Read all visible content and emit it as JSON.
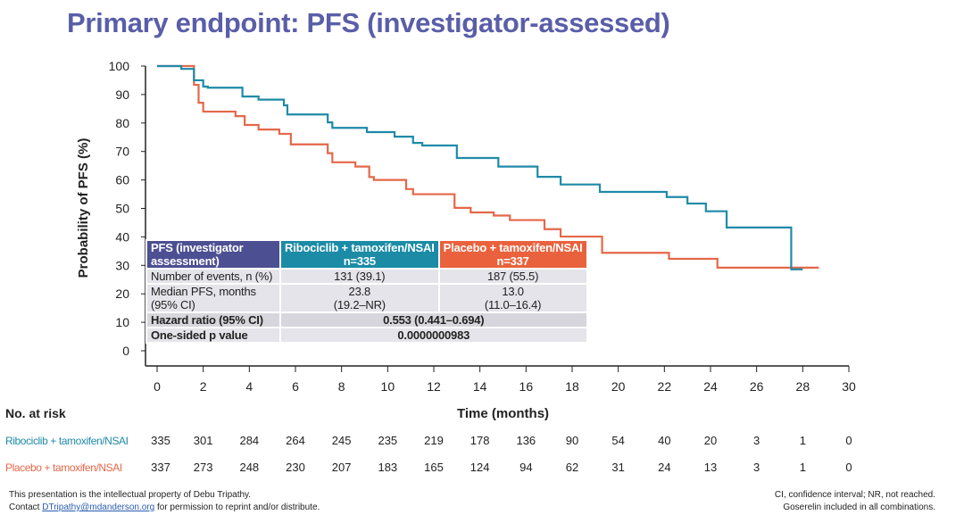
{
  "title": "Primary endpoint: PFS (investigator-assessed)",
  "chart_data": {
    "type": "line",
    "step": true,
    "xlabel": "Time (months)",
    "ylabel": "Probability of PFS (%)",
    "xlim": [
      0,
      30
    ],
    "ylim": [
      0,
      100
    ],
    "xticks": [
      0,
      2,
      4,
      6,
      8,
      10,
      12,
      14,
      16,
      18,
      20,
      22,
      24,
      26,
      28,
      30
    ],
    "yticks": [
      0,
      10,
      20,
      30,
      40,
      50,
      60,
      70,
      80,
      90,
      100
    ],
    "grid": false,
    "series": [
      {
        "name": "Ribociclib + tamoxifen/NSAI",
        "color": "#1f8aa8",
        "points": [
          [
            0,
            100
          ],
          [
            1.05,
            99
          ],
          [
            1.6,
            95
          ],
          [
            2.0,
            92.8
          ],
          [
            2.2,
            92.4
          ],
          [
            3.7,
            89.3
          ],
          [
            4.4,
            88.2
          ],
          [
            5.5,
            86.2
          ],
          [
            5.65,
            83
          ],
          [
            7.4,
            80.2
          ],
          [
            7.6,
            78.3
          ],
          [
            9.1,
            76.8
          ],
          [
            10.3,
            75.2
          ],
          [
            11.1,
            73
          ],
          [
            11.5,
            72.1
          ],
          [
            13.0,
            67.7
          ],
          [
            14.8,
            64.7
          ],
          [
            16.5,
            61.1
          ],
          [
            17.5,
            58.4
          ],
          [
            19.2,
            55.8
          ],
          [
            22.1,
            54
          ],
          [
            23.0,
            51.7
          ],
          [
            23.8,
            49
          ],
          [
            24.7,
            43.3
          ],
          [
            27.5,
            28.6
          ],
          [
            28.0,
            28.6
          ]
        ]
      },
      {
        "name": "Placebo + tamoxifen/NSAI",
        "color": "#e4684a",
        "points": [
          [
            0,
            100
          ],
          [
            1.6,
            93.4
          ],
          [
            1.8,
            87.1
          ],
          [
            2.0,
            84
          ],
          [
            3.4,
            82.4
          ],
          [
            3.8,
            79.3
          ],
          [
            4.4,
            77.7
          ],
          [
            5.3,
            76.2
          ],
          [
            5.8,
            72.5
          ],
          [
            7.4,
            69.4
          ],
          [
            7.6,
            66.2
          ],
          [
            8.6,
            64.7
          ],
          [
            9.2,
            61
          ],
          [
            9.4,
            60
          ],
          [
            10.8,
            56.8
          ],
          [
            11.1,
            55
          ],
          [
            12.9,
            50.2
          ],
          [
            13.6,
            48.6
          ],
          [
            14.6,
            47.5
          ],
          [
            15.3,
            45.9
          ],
          [
            16.8,
            42.7
          ],
          [
            17.5,
            40.1
          ],
          [
            19.3,
            34.4
          ],
          [
            22.2,
            32.3
          ],
          [
            24.3,
            29.2
          ],
          [
            28.7,
            29.2
          ]
        ]
      }
    ]
  },
  "table": {
    "header": [
      "PFS (investigator assessment)",
      "Ribociclib + tamoxifen/NSAI",
      "n=335",
      "Placebo + tamoxifen/NSAI",
      "n=337"
    ],
    "rows": [
      {
        "label": "Number of events, n (%)",
        "a": "131 (39.1)",
        "b": "187 (55.5)"
      },
      {
        "label": "Median PFS, months",
        "label2": "(95% CI)",
        "a": "23.8",
        "a2": "(19.2–NR)",
        "b": "13.0",
        "b2": "(11.0–16.4)"
      },
      {
        "label": "Hazard ratio (95% CI)",
        "v": "0.553 (0.441–0.694)"
      },
      {
        "label": "One-sided p value",
        "v": "0.0000000983"
      }
    ]
  },
  "at_risk": {
    "title": "No. at risk",
    "rows": [
      {
        "label": "Ribociclib + tamoxifen/NSAI",
        "color": "#1f8aa8",
        "values": [
          "335",
          "301",
          "284",
          "264",
          "245",
          "235",
          "219",
          "178",
          "136",
          "90",
          "54",
          "40",
          "20",
          "3",
          "1",
          "0"
        ]
      },
      {
        "label": "Placebo + tamoxifen/NSAI",
        "color": "#e4684a",
        "values": [
          "337",
          "273",
          "248",
          "230",
          "207",
          "183",
          "165",
          "124",
          "94",
          "62",
          "31",
          "24",
          "13",
          "3",
          "1",
          "0"
        ]
      }
    ]
  },
  "footer": {
    "left1": "This presentation is the intellectual property of Debu Tripathy.",
    "left2a": "Contact ",
    "email": "DTripathy@mdanderson.org",
    "left2b": " for permission to reprint and/or distribute.",
    "right1": "CI, confidence interval; NR, not reached.",
    "right2": "Goserelin included in all combinations."
  }
}
